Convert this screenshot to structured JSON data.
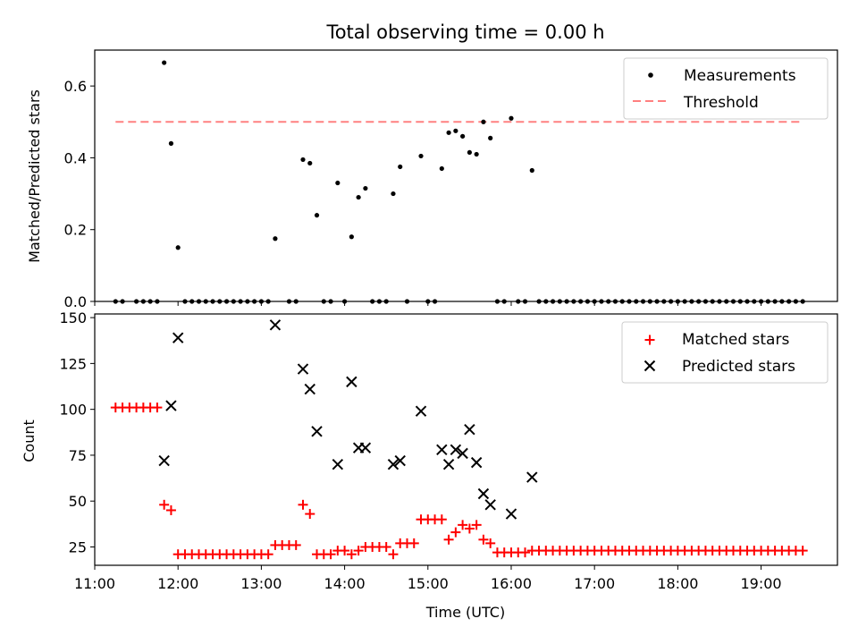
{
  "title": "Total observing time = 0.00 h",
  "colors": {
    "measurement": "#000000",
    "threshold": "#ff8080",
    "matched": "#ff0000",
    "predicted": "#000000"
  },
  "chart_data": [
    {
      "type": "scatter",
      "title": "Total observing time = 0.00 h",
      "xlabel": "",
      "ylabel": "Matched/Predicted stars",
      "xlim": [
        "11:00",
        "19:55"
      ],
      "ylim": [
        0,
        0.7
      ],
      "yticks": [
        "0.0",
        "0.2",
        "0.4",
        "0.6"
      ],
      "legend_position": "top-right",
      "threshold": {
        "name": "Threshold",
        "value": 0.5,
        "x_start": "11:15",
        "x_end": "19:30"
      },
      "series": [
        {
          "name": "Measurements",
          "points": [
            [
              "11:15",
              0
            ],
            [
              "11:20",
              0
            ],
            [
              "11:30",
              0
            ],
            [
              "11:35",
              0
            ],
            [
              "11:40",
              0
            ],
            [
              "11:45",
              0
            ],
            [
              "11:50",
              0.665
            ],
            [
              "11:55",
              0.44
            ],
            [
              "12:00",
              0.15
            ],
            [
              "12:05",
              0
            ],
            [
              "12:10",
              0
            ],
            [
              "12:15",
              0
            ],
            [
              "12:20",
              0
            ],
            [
              "12:25",
              0
            ],
            [
              "12:30",
              0
            ],
            [
              "12:35",
              0
            ],
            [
              "12:40",
              0
            ],
            [
              "12:45",
              0
            ],
            [
              "12:50",
              0
            ],
            [
              "12:55",
              0
            ],
            [
              "13:00",
              0
            ],
            [
              "13:05",
              0
            ],
            [
              "13:10",
              0.175
            ],
            [
              "13:20",
              0
            ],
            [
              "13:25",
              0
            ],
            [
              "13:30",
              0.395
            ],
            [
              "13:35",
              0.385
            ],
            [
              "13:40",
              0.24
            ],
            [
              "13:45",
              0
            ],
            [
              "13:50",
              0
            ],
            [
              "13:55",
              0.33
            ],
            [
              "14:00",
              0
            ],
            [
              "14:05",
              0.18
            ],
            [
              "14:10",
              0.29
            ],
            [
              "14:15",
              0.315
            ],
            [
              "14:20",
              0
            ],
            [
              "14:25",
              0
            ],
            [
              "14:30",
              0
            ],
            [
              "14:35",
              0.3
            ],
            [
              "14:40",
              0.375
            ],
            [
              "14:45",
              0
            ],
            [
              "14:55",
              0.405
            ],
            [
              "15:00",
              0
            ],
            [
              "15:05",
              0
            ],
            [
              "15:10",
              0.37
            ],
            [
              "15:15",
              0.47
            ],
            [
              "15:20",
              0.475
            ],
            [
              "15:25",
              0.46
            ],
            [
              "15:30",
              0.415
            ],
            [
              "15:35",
              0.41
            ],
            [
              "15:40",
              0.5
            ],
            [
              "15:45",
              0.455
            ],
            [
              "15:50",
              0
            ],
            [
              "15:55",
              0
            ],
            [
              "16:00",
              0.51
            ],
            [
              "16:05",
              0
            ],
            [
              "16:10",
              0
            ],
            [
              "16:15",
              0.365
            ],
            [
              "16:20",
              0
            ],
            [
              "16:25",
              0
            ],
            [
              "16:30",
              0
            ],
            [
              "16:35",
              0
            ],
            [
              "16:40",
              0
            ],
            [
              "16:45",
              0
            ],
            [
              "16:50",
              0
            ],
            [
              "16:55",
              0
            ],
            [
              "17:00",
              0
            ],
            [
              "17:05",
              0
            ],
            [
              "17:10",
              0
            ],
            [
              "17:15",
              0
            ],
            [
              "17:20",
              0
            ],
            [
              "17:25",
              0
            ],
            [
              "17:30",
              0
            ],
            [
              "17:35",
              0
            ],
            [
              "17:40",
              0
            ],
            [
              "17:45",
              0
            ],
            [
              "17:50",
              0
            ],
            [
              "17:55",
              0
            ],
            [
              "18:00",
              0
            ],
            [
              "18:05",
              0
            ],
            [
              "18:10",
              0
            ],
            [
              "18:15",
              0
            ],
            [
              "18:20",
              0
            ],
            [
              "18:25",
              0
            ],
            [
              "18:30",
              0
            ],
            [
              "18:35",
              0
            ],
            [
              "18:40",
              0
            ],
            [
              "18:45",
              0
            ],
            [
              "18:50",
              0
            ],
            [
              "18:55",
              0
            ],
            [
              "19:00",
              0
            ],
            [
              "19:05",
              0
            ],
            [
              "19:10",
              0
            ],
            [
              "19:15",
              0
            ],
            [
              "19:20",
              0
            ],
            [
              "19:25",
              0
            ],
            [
              "19:30",
              0
            ]
          ]
        }
      ]
    },
    {
      "type": "scatter",
      "xlabel": "Time (UTC)",
      "ylabel": "Count",
      "xlim": [
        "11:00",
        "19:55"
      ],
      "ylim": [
        15,
        152
      ],
      "xticks": [
        "11:00",
        "12:00",
        "13:00",
        "14:00",
        "15:00",
        "16:00",
        "17:00",
        "18:00",
        "19:00"
      ],
      "yticks": [
        "25",
        "50",
        "75",
        "100",
        "125",
        "150"
      ],
      "legend_position": "top-right",
      "series": [
        {
          "name": "Matched stars",
          "marker": "plus",
          "points": [
            [
              "11:15",
              101
            ],
            [
              "11:20",
              101
            ],
            [
              "11:25",
              101
            ],
            [
              "11:30",
              101
            ],
            [
              "11:35",
              101
            ],
            [
              "11:40",
              101
            ],
            [
              "11:45",
              101
            ],
            [
              "11:50",
              48
            ],
            [
              "11:55",
              45
            ],
            [
              "12:00",
              21
            ],
            [
              "12:05",
              21
            ],
            [
              "12:10",
              21
            ],
            [
              "12:15",
              21
            ],
            [
              "12:20",
              21
            ],
            [
              "12:25",
              21
            ],
            [
              "12:30",
              21
            ],
            [
              "12:35",
              21
            ],
            [
              "12:40",
              21
            ],
            [
              "12:45",
              21
            ],
            [
              "12:50",
              21
            ],
            [
              "12:55",
              21
            ],
            [
              "13:00",
              21
            ],
            [
              "13:05",
              21
            ],
            [
              "13:10",
              26
            ],
            [
              "13:15",
              26
            ],
            [
              "13:20",
              26
            ],
            [
              "13:25",
              26
            ],
            [
              "13:30",
              48
            ],
            [
              "13:35",
              43
            ],
            [
              "13:40",
              21
            ],
            [
              "13:45",
              21
            ],
            [
              "13:50",
              21
            ],
            [
              "13:55",
              23
            ],
            [
              "14:00",
              23
            ],
            [
              "14:05",
              21
            ],
            [
              "14:10",
              23
            ],
            [
              "14:15",
              25
            ],
            [
              "14:20",
              25
            ],
            [
              "14:25",
              25
            ],
            [
              "14:30",
              25
            ],
            [
              "14:35",
              21
            ],
            [
              "14:40",
              27
            ],
            [
              "14:45",
              27
            ],
            [
              "14:50",
              27
            ],
            [
              "14:55",
              40
            ],
            [
              "15:00",
              40
            ],
            [
              "15:05",
              40
            ],
            [
              "15:10",
              40
            ],
            [
              "15:15",
              29
            ],
            [
              "15:20",
              33
            ],
            [
              "15:25",
              37
            ],
            [
              "15:30",
              35
            ],
            [
              "15:35",
              37
            ],
            [
              "15:40",
              29
            ],
            [
              "15:45",
              27
            ],
            [
              "15:50",
              22
            ],
            [
              "15:55",
              22
            ],
            [
              "16:00",
              22
            ],
            [
              "16:05",
              22
            ],
            [
              "16:10",
              22
            ],
            [
              "16:15",
              23
            ],
            [
              "16:20",
              23
            ],
            [
              "16:25",
              23
            ],
            [
              "16:30",
              23
            ],
            [
              "16:35",
              23
            ],
            [
              "16:40",
              23
            ],
            [
              "16:45",
              23
            ],
            [
              "16:50",
              23
            ],
            [
              "16:55",
              23
            ],
            [
              "17:00",
              23
            ],
            [
              "17:05",
              23
            ],
            [
              "17:10",
              23
            ],
            [
              "17:15",
              23
            ],
            [
              "17:20",
              23
            ],
            [
              "17:25",
              23
            ],
            [
              "17:30",
              23
            ],
            [
              "17:35",
              23
            ],
            [
              "17:40",
              23
            ],
            [
              "17:45",
              23
            ],
            [
              "17:50",
              23
            ],
            [
              "17:55",
              23
            ],
            [
              "18:00",
              23
            ],
            [
              "18:05",
              23
            ],
            [
              "18:10",
              23
            ],
            [
              "18:15",
              23
            ],
            [
              "18:20",
              23
            ],
            [
              "18:25",
              23
            ],
            [
              "18:30",
              23
            ],
            [
              "18:35",
              23
            ],
            [
              "18:40",
              23
            ],
            [
              "18:45",
              23
            ],
            [
              "18:50",
              23
            ],
            [
              "18:55",
              23
            ],
            [
              "19:00",
              23
            ],
            [
              "19:05",
              23
            ],
            [
              "19:10",
              23
            ],
            [
              "19:15",
              23
            ],
            [
              "19:20",
              23
            ],
            [
              "19:25",
              23
            ],
            [
              "19:30",
              23
            ]
          ]
        },
        {
          "name": "Predicted stars",
          "marker": "x",
          "points": [
            [
              "11:50",
              72
            ],
            [
              "11:55",
              102
            ],
            [
              "12:00",
              139
            ],
            [
              "13:10",
              146
            ],
            [
              "13:30",
              122
            ],
            [
              "13:35",
              111
            ],
            [
              "13:40",
              88
            ],
            [
              "13:55",
              70
            ],
            [
              "14:05",
              115
            ],
            [
              "14:10",
              79
            ],
            [
              "14:15",
              79
            ],
            [
              "14:35",
              70
            ],
            [
              "14:40",
              72
            ],
            [
              "14:55",
              99
            ],
            [
              "15:10",
              78
            ],
            [
              "15:15",
              70
            ],
            [
              "15:20",
              78
            ],
            [
              "15:25",
              76
            ],
            [
              "15:30",
              89
            ],
            [
              "15:35",
              71
            ],
            [
              "15:40",
              54
            ],
            [
              "15:45",
              48
            ],
            [
              "16:00",
              43
            ],
            [
              "16:15",
              63
            ]
          ]
        }
      ]
    }
  ]
}
